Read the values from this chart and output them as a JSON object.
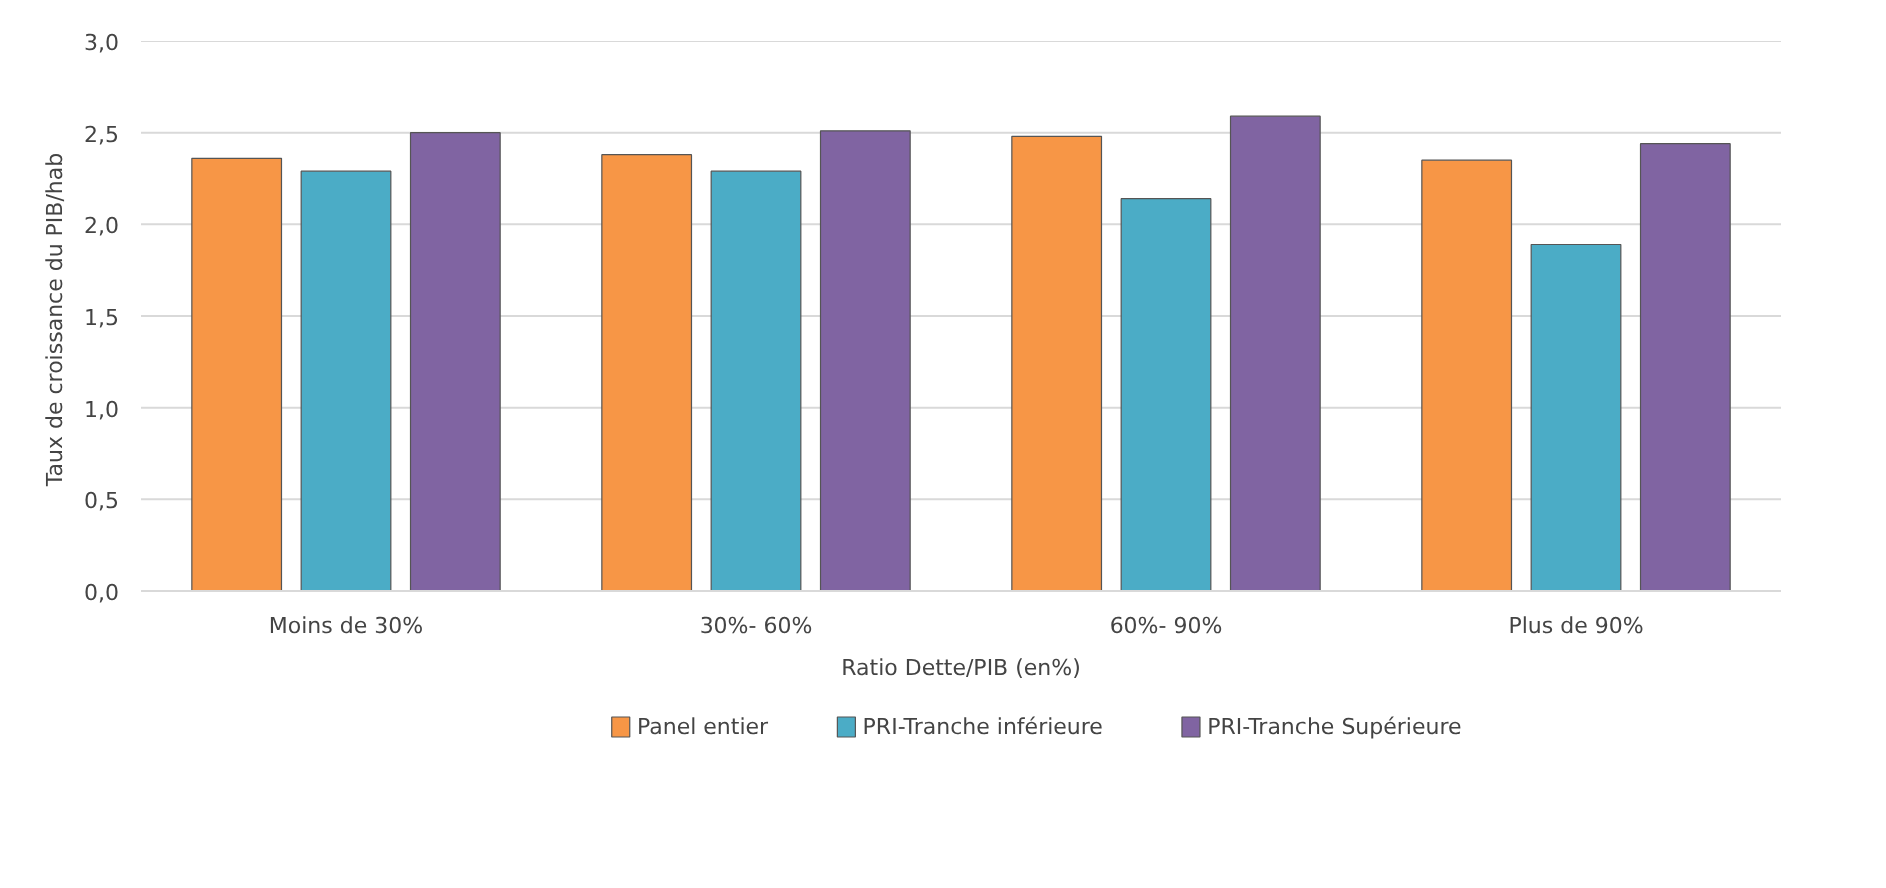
{
  "chart_data": {
    "type": "bar",
    "xlabel": "Ratio Dette/PIB (en%)",
    "ylabel": "Taux de croissance  du PIB/hab",
    "categories": [
      "Moins de 30%",
      "30%- 60%",
      "60%- 90%",
      "Plus de 90%"
    ],
    "series": [
      {
        "name": "Panel entier",
        "color": "#f79646",
        "values": [
          2.36,
          2.38,
          2.48,
          2.35
        ]
      },
      {
        "name": "PRI-Tranche inférieure",
        "color": "#4bacc6",
        "values": [
          2.29,
          2.29,
          2.14,
          1.89
        ]
      },
      {
        "name": "PRI-Tranche Supérieure",
        "color": "#8064a2",
        "values": [
          2.5,
          2.51,
          2.59,
          2.44
        ]
      }
    ],
    "ylim": [
      0,
      3
    ],
    "yticks": [
      {
        "value": 0,
        "label": "0,0"
      },
      {
        "value": 0.5,
        "label": "0,5"
      },
      {
        "value": 1,
        "label": "1,0"
      },
      {
        "value": 1.5,
        "label": "1,5"
      },
      {
        "value": 2,
        "label": "2,0"
      },
      {
        "value": 2.5,
        "label": "2,5"
      },
      {
        "value": 3,
        "label": "3,0"
      }
    ],
    "grid": "y",
    "legend": "bottom"
  }
}
